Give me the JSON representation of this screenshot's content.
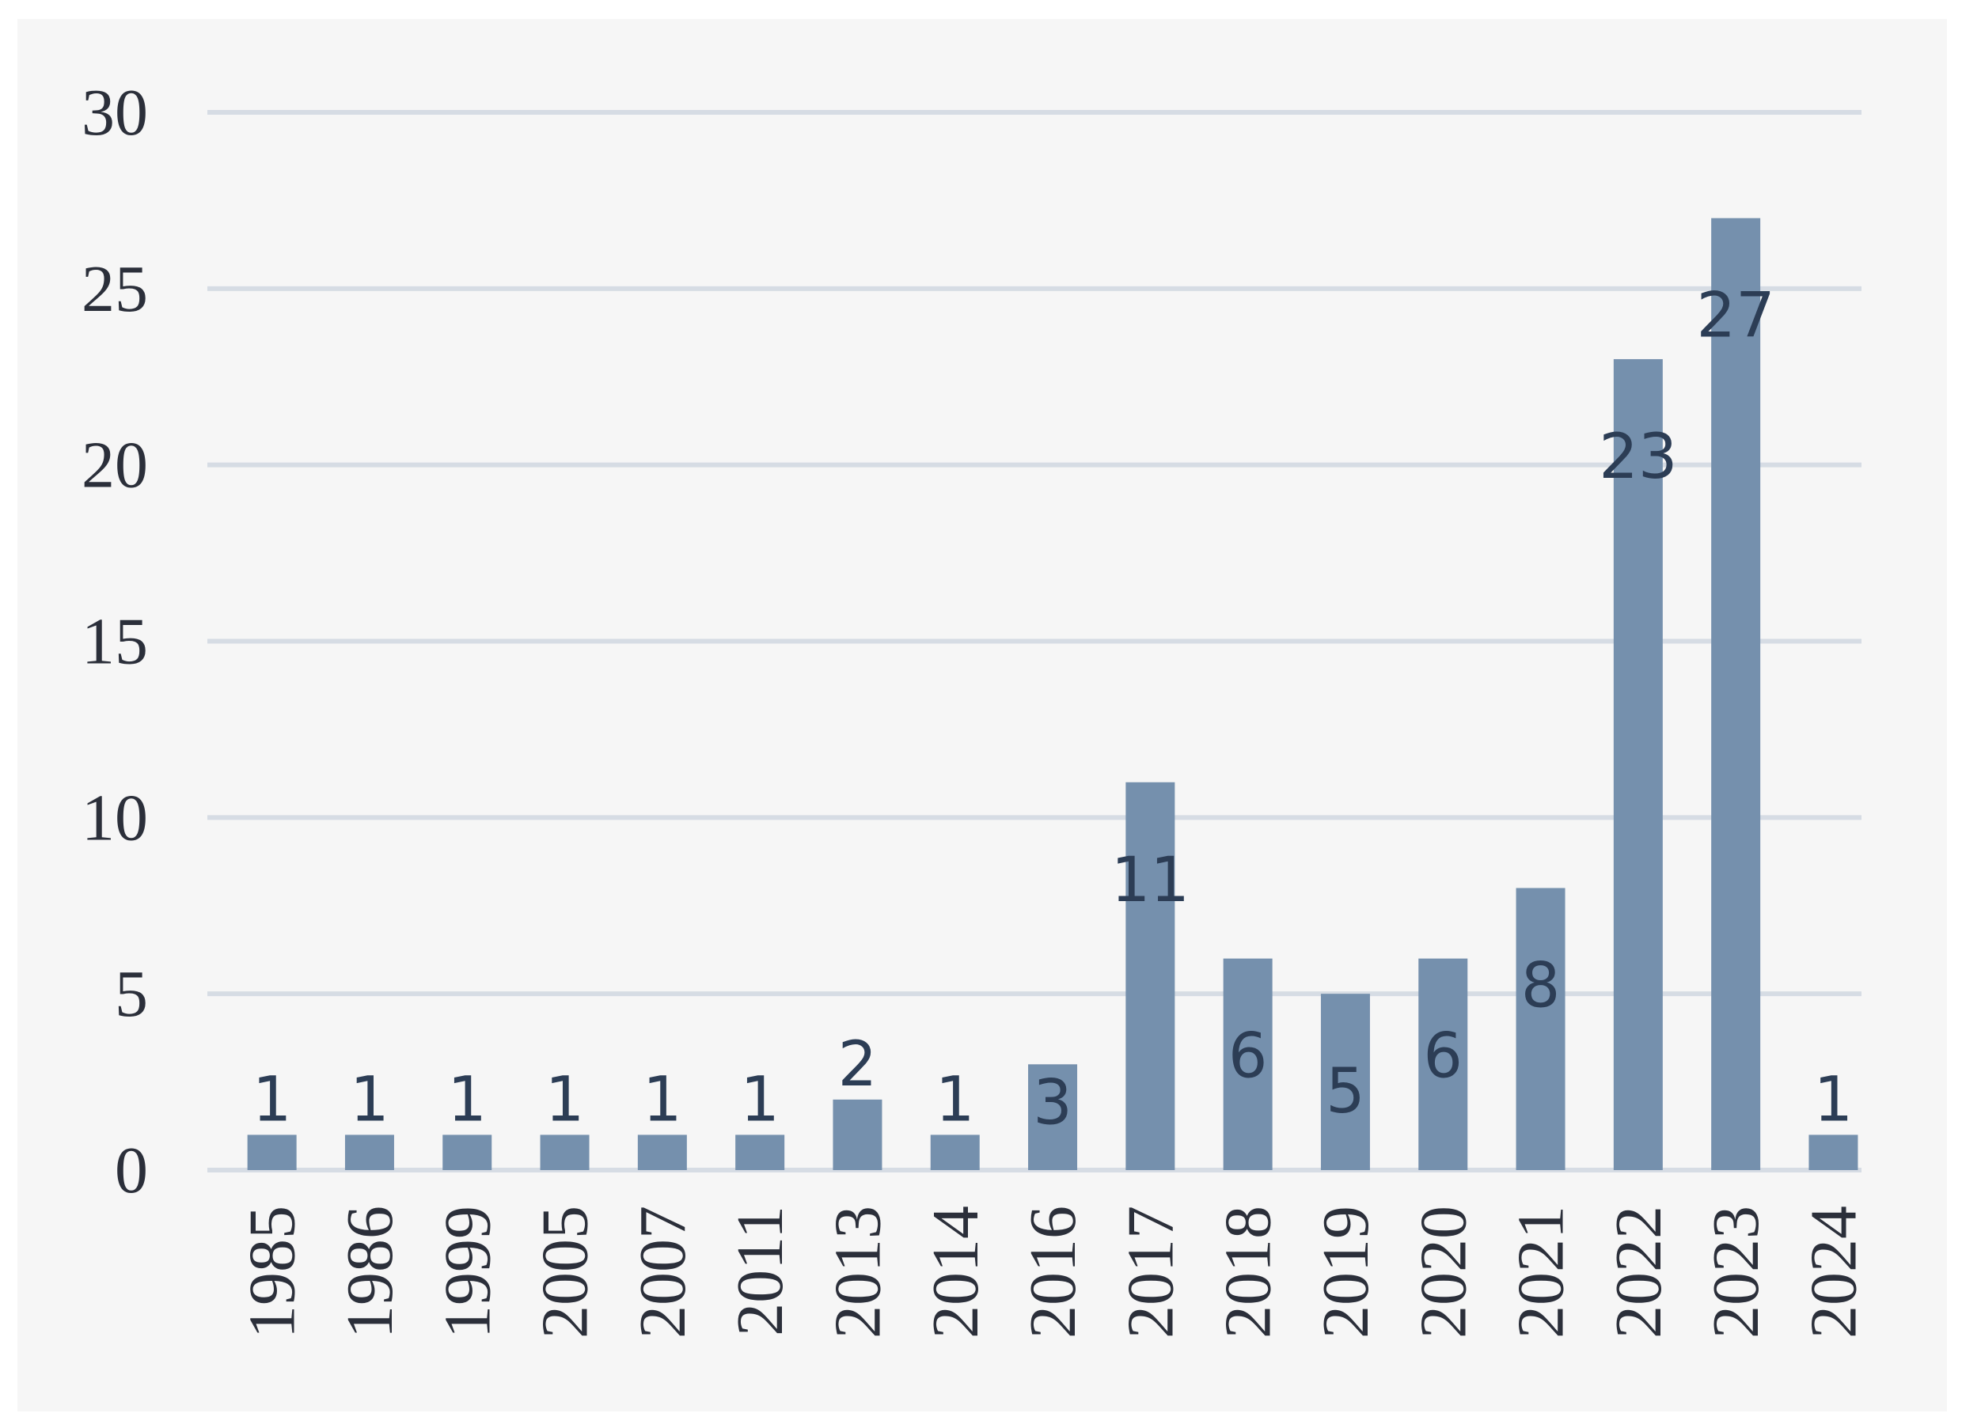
{
  "chart_data": {
    "type": "bar",
    "title": "",
    "xlabel": "",
    "ylabel": "",
    "categories": [
      "1985",
      "1986",
      "1999",
      "2005",
      "2007",
      "2011",
      "2013",
      "2014",
      "2016",
      "2017",
      "2018",
      "2019",
      "2020",
      "2021",
      "2022",
      "2023",
      "2024"
    ],
    "values": [
      1,
      1,
      1,
      1,
      1,
      1,
      2,
      1,
      3,
      11,
      6,
      5,
      6,
      8,
      23,
      27,
      1
    ],
    "ylim": [
      0,
      30
    ],
    "yticks": [
      0,
      5,
      10,
      15,
      20,
      25,
      30
    ],
    "grid": "horizontal",
    "data_labels": true,
    "legend": "none",
    "colors": {
      "bar": "#7590ad",
      "grid": "#d6dce4",
      "background": "#f6f6f6",
      "data_label": "#2c3d55"
    }
  }
}
